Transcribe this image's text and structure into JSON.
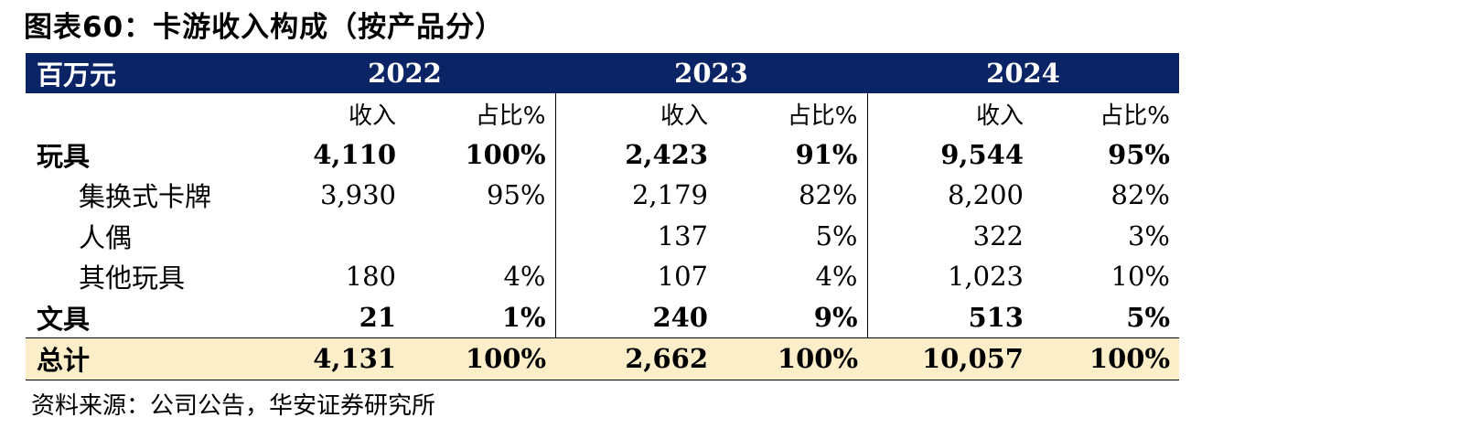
{
  "title": "图表60：卡游收入构成（按产品分）",
  "table": {
    "unit_label": "百万元",
    "years": [
      "2022",
      "2023",
      "2024"
    ],
    "col_revenue": "收入",
    "col_share": "占比%",
    "rows": [
      {
        "label": "玩具",
        "v2022": "4,110",
        "s2022": "100%",
        "v2023": "2,423",
        "s2023": "91%",
        "v2024": "9,544",
        "s2024": "95%"
      },
      {
        "label": "集换式卡牌",
        "v2022": "3,930",
        "s2022": "95%",
        "v2023": "2,179",
        "s2023": "82%",
        "v2024": "8,200",
        "s2024": "82%"
      },
      {
        "label": "人偶",
        "v2022": "",
        "s2022": "",
        "v2023": "137",
        "s2023": "5%",
        "v2024": "322",
        "s2024": "3%"
      },
      {
        "label": "其他玩具",
        "v2022": "180",
        "s2022": "4%",
        "v2023": "107",
        "s2023": "4%",
        "v2024": "1,023",
        "s2024": "10%"
      },
      {
        "label": "文具",
        "v2022": "21",
        "s2022": "1%",
        "v2023": "240",
        "s2023": "9%",
        "v2024": "513",
        "s2024": "5%"
      },
      {
        "label": "总计",
        "v2022": "4,131",
        "s2022": "100%",
        "v2023": "2,662",
        "s2023": "100%",
        "v2024": "10,057",
        "s2024": "100%"
      }
    ]
  },
  "source": "资料来源：公司公告，华安证券研究所"
}
